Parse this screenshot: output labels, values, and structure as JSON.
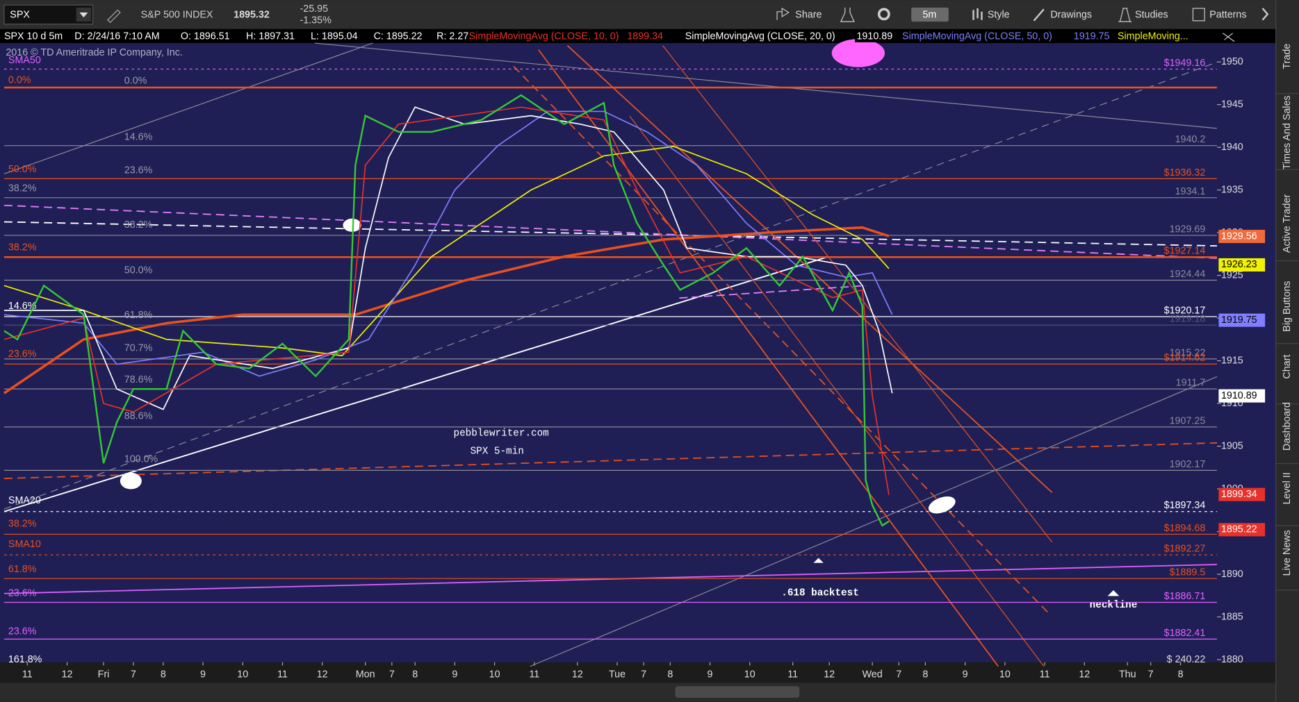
{
  "toolbar": {
    "symbol": "SPX",
    "name": "S&P 500 INDEX",
    "last": "1895.32",
    "change": "-25.95",
    "change_pct": "-1.35%",
    "interval": "5m",
    "buttons": [
      "Share",
      "Style",
      "Drawings",
      "Studies",
      "Patterns"
    ]
  },
  "info_bar": {
    "chart": "SPX 10 d 5m",
    "date": "D: 2/24/16 7:10 AM",
    "open": "O: 1896.51",
    "high": "H: 1897.31",
    "low": "L: 1895.04",
    "close": "C: 1895.22",
    "range": "R: 2.27"
  },
  "sidebar": [
    "Trade",
    "Times And Sales",
    "Active Trader",
    "Big Buttons",
    "Chart",
    "Dashboard",
    "Level II",
    "Live News"
  ],
  "chart_data": {
    "type": "line",
    "copyright": "2016 © TD Ameritrade IP Company, Inc.",
    "annotations": [
      "pebblewriter.com",
      "SPX 5-min",
      ".618 backtest",
      "neckline",
      "$ 240.22"
    ],
    "xlim": [
      0,
      366
    ],
    "xticks": [
      {
        "value": 7,
        "label": "11"
      },
      {
        "value": 19,
        "label": "12"
      },
      {
        "value": 30,
        "label": "Fri"
      },
      {
        "value": 39,
        "label": "7"
      },
      {
        "value": 48,
        "label": "8"
      },
      {
        "value": 60,
        "label": "9"
      },
      {
        "value": 72,
        "label": "10"
      },
      {
        "value": 84,
        "label": "11"
      },
      {
        "value": 96,
        "label": "12"
      },
      {
        "value": 109,
        "label": "Mon"
      },
      {
        "value": 117,
        "label": "7"
      },
      {
        "value": 124,
        "label": "8"
      },
      {
        "value": 136,
        "label": "9"
      },
      {
        "value": 148,
        "label": "10"
      },
      {
        "value": 160,
        "label": "11"
      },
      {
        "value": 173,
        "label": "12"
      },
      {
        "value": 185,
        "label": "Tue"
      },
      {
        "value": 193,
        "label": "7"
      },
      {
        "value": 201,
        "label": "8"
      },
      {
        "value": 213,
        "label": "9"
      },
      {
        "value": 225,
        "label": "10"
      },
      {
        "value": 238,
        "label": "11"
      },
      {
        "value": 249,
        "label": "12"
      },
      {
        "value": 262,
        "label": "Wed"
      },
      {
        "value": 270,
        "label": "7"
      },
      {
        "value": 278,
        "label": "8"
      },
      {
        "value": 290,
        "label": "9"
      },
      {
        "value": 302,
        "label": "10"
      },
      {
        "value": 314,
        "label": "11"
      },
      {
        "value": 326,
        "label": "12"
      },
      {
        "value": 339,
        "label": "Thu"
      },
      {
        "value": 346,
        "label": "7"
      },
      {
        "value": 355,
        "label": "8"
      }
    ],
    "ylim": [
      1879.7,
      1952.2
    ],
    "yticks": [
      1880,
      1885,
      1890,
      1895,
      1900,
      1905,
      1910,
      1915,
      1920,
      1925,
      1930,
      1935,
      1940,
      1945,
      1950
    ],
    "series": [
      {
        "name": "SPX",
        "color": "#35c935",
        "x": [
          0,
          4,
          12,
          24,
          30,
          34,
          39,
          49,
          54,
          64,
          74,
          84,
          94,
          104,
          106,
          109,
          119,
          129,
          144,
          156,
          169,
          181,
          184,
          191,
          199,
          204,
          214,
          224,
          234,
          241,
          250,
          255,
          259,
          260,
          262,
          265,
          267
        ],
        "values": [
          1918.5,
          1917.5,
          1923.8,
          1920.4,
          1903,
          1907.8,
          1911.7,
          1911.7,
          1918.5,
          1914.6,
          1914.1,
          1917,
          1913.2,
          1917.5,
          1937.9,
          1943.7,
          1941.8,
          1941.8,
          1943.2,
          1946.1,
          1942.7,
          1945.2,
          1937.9,
          1931.1,
          1926.2,
          1923.3,
          1925.3,
          1928.2,
          1923.8,
          1927.2,
          1920.9,
          1925.3,
          1921.4,
          1901,
          1898.1,
          1895.7,
          1896.2
        ]
      },
      {
        "name": "SimpleMovingAvg (CLOSE, 10, 0)",
        "color": "#e8312a",
        "last": 1899.34,
        "x": [
          0,
          24,
          30,
          39,
          64,
          104,
          109,
          119,
          156,
          181,
          191,
          204,
          224,
          250,
          259,
          262,
          267
        ],
        "values": [
          1917.5,
          1920,
          1910,
          1909,
          1914.6,
          1916,
          1937.9,
          1942.7,
          1944.7,
          1943.2,
          1935,
          1925.3,
          1927.2,
          1922.4,
          1923.3,
          1910.9,
          1899.3
        ]
      },
      {
        "name": "SimpleMovingAvg (CLOSE, 20, 0)",
        "color": "#ffffff",
        "last": 1910.89,
        "x": [
          0,
          24,
          34,
          48,
          56,
          81,
          104,
          109,
          116,
          124,
          139,
          159,
          174,
          184,
          199,
          206,
          224,
          239,
          254,
          259,
          264,
          268
        ],
        "values": [
          1920.9,
          1920.9,
          1911.7,
          1909.3,
          1915.6,
          1914.1,
          1916.5,
          1928.2,
          1938.8,
          1944.7,
          1942.7,
          1943.7,
          1942.7,
          1941.8,
          1935,
          1928.2,
          1927.2,
          1927.2,
          1926.2,
          1923.8,
          1918.5,
          1911.2
        ]
      },
      {
        "name": "SimpleMovingAvg (CLOSE, 50, 0)",
        "color": "#7f7fff",
        "last": 1919.75,
        "x": [
          0,
          24,
          34,
          60,
          77,
          94,
          110,
          124,
          136,
          149,
          164,
          181,
          194,
          209,
          224,
          239,
          254,
          262,
          268
        ],
        "values": [
          1920.4,
          1919.4,
          1914.6,
          1916,
          1913.2,
          1915.1,
          1917.5,
          1926.2,
          1935,
          1940.2,
          1944.2,
          1944.2,
          1941.8,
          1937.9,
          1931.1,
          1926.2,
          1924.8,
          1925.3,
          1920.4
        ]
      },
      {
        "name": "SimpleMoving...",
        "color": "#f2f200",
        "x": [
          0,
          24,
          49,
          84,
          102,
          129,
          159,
          181,
          202,
          224,
          244,
          259,
          267
        ],
        "values": [
          1923.8,
          1920.9,
          1917.5,
          1916.5,
          1915.6,
          1927.2,
          1935,
          1939,
          1940.1,
          1936.9,
          1932.1,
          1929.2,
          1925.8
        ]
      },
      {
        "color": "#e8501f",
        "x": [
          0,
          24,
          49,
          72,
          106,
          139,
          169,
          199,
          234,
          259,
          267
        ],
        "values": [
          1911.2,
          1917.5,
          1919.4,
          1920.4,
          1920.4,
          1924.4,
          1927.2,
          1929.2,
          1930.1,
          1930.6,
          1929.6
        ]
      }
    ],
    "levels": [
      {
        "value": 1949.16,
        "label": "$1949.16",
        "color": "#e060ff",
        "style": "dotted"
      },
      {
        "value": 1947,
        "color": "#e8501f",
        "style": "thick"
      },
      {
        "value": 1940.2,
        "label": "1940.2",
        "color": "#8a8a9a",
        "style": "solid"
      },
      {
        "value": 1936.32,
        "label": "$1936.32",
        "color": "#e8501f",
        "style": "solid"
      },
      {
        "value": 1934.1,
        "label": "1934.1",
        "color": "#8a8a9a",
        "style": "solid"
      },
      {
        "value": 1929.69,
        "label": "1929.69",
        "color": "#8a8a9a",
        "style": "solid"
      },
      {
        "value": 1927.14,
        "label": "$1927.14",
        "color": "#e8501f",
        "style": "thick"
      },
      {
        "value": 1924.44,
        "label": "1924.44",
        "color": "#8a8a9a",
        "style": "solid"
      },
      {
        "value": 1920.17,
        "label": "$1920.17",
        "color": "#ffffff",
        "style": "solid"
      },
      {
        "value": 1919.18,
        "label": "1919.18",
        "color": "#55557a",
        "style": "solid"
      },
      {
        "value": 1915.22,
        "label": "1915.22",
        "color": "#8a8a9a",
        "style": "solid"
      },
      {
        "value": 1914.62,
        "label": "$1914.62",
        "color": "#e8501f",
        "style": "solid"
      },
      {
        "value": 1911.7,
        "label": "1911.7",
        "color": "#8a8a9a",
        "style": "solid"
      },
      {
        "value": 1907.25,
        "label": "1907.25",
        "color": "#8a8a9a",
        "style": "solid"
      },
      {
        "value": 1902.17,
        "label": "1902.17",
        "color": "#8a8a9a",
        "style": "solid"
      },
      {
        "value": 1897.34,
        "label": "$1897.34",
        "color": "#ffffff",
        "style": "dotted"
      },
      {
        "value": 1894.68,
        "label": "$1894.68",
        "color": "#e8501f",
        "style": "solid"
      },
      {
        "value": 1892.27,
        "label": "$1892.27",
        "color": "#e8501f",
        "style": "dotted"
      },
      {
        "value": 1889.5,
        "label": "$1889.5",
        "color": "#e8501f",
        "style": "solid"
      },
      {
        "value": 1886.71,
        "label": "$1886.71",
        "color": "#e060ff",
        "style": "solid"
      },
      {
        "value": 1882.41,
        "label": "$1882.41",
        "color": "#e060ff",
        "style": "solid"
      }
    ],
    "left_labels": [
      "SMA50",
      "0.0%",
      "50.0%",
      "38.2%",
      "38.2%",
      "14.6%",
      "23.6%",
      "SMA20",
      "38.2%",
      "SMA10",
      "61.8%",
      "23.6%",
      "23.6%",
      "161.8%"
    ],
    "inner_labels": [
      "0.0%",
      "14.6%",
      "23.6%",
      "38.2%",
      "50.0%",
      "61.8%",
      "70.7%",
      "78.6%",
      "88.6%",
      "100.0%"
    ],
    "axis_flags": [
      {
        "value": 1929.56,
        "color": "#f06a3a"
      },
      {
        "value": 1926.23,
        "color": "#f2f200"
      },
      {
        "value": 1919.75,
        "color": "#7f7fff"
      },
      {
        "value": 1910.89,
        "color": "#ffffff"
      },
      {
        "value": 1899.34,
        "color": "#e8312a"
      },
      {
        "value": 1895.22,
        "color": "#e8312a"
      }
    ]
  }
}
